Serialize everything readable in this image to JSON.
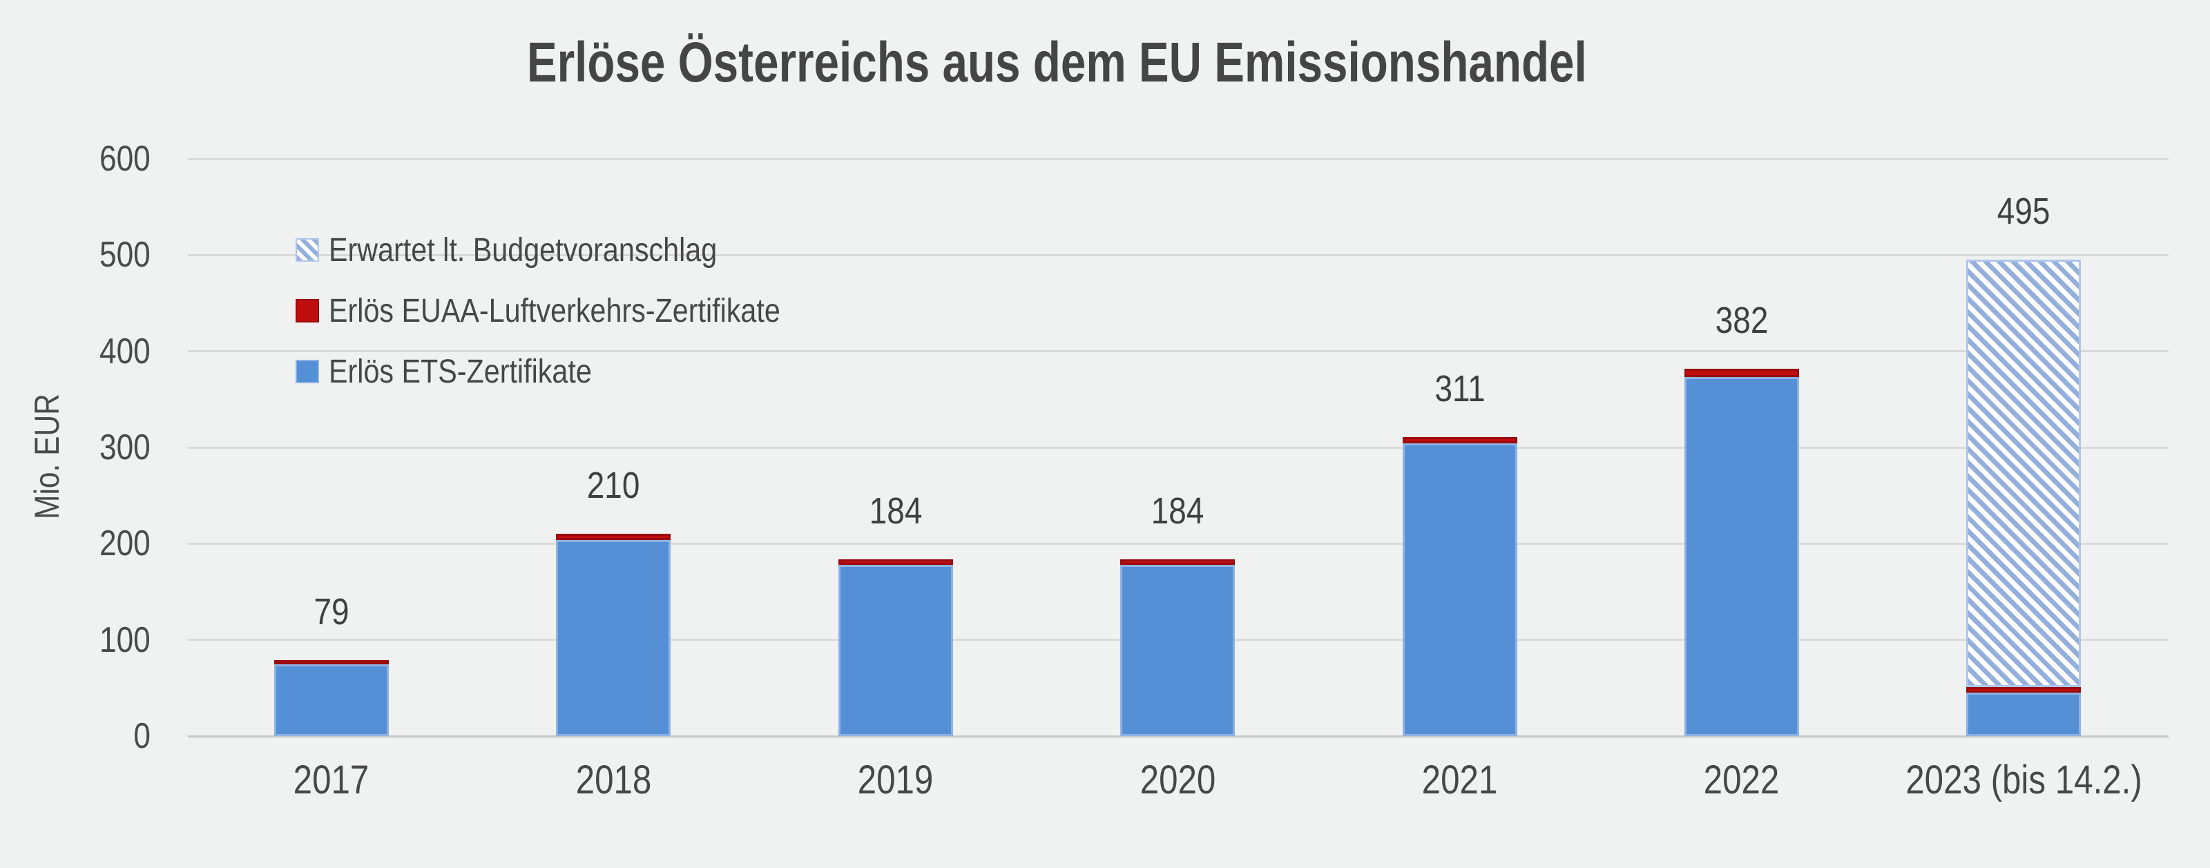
{
  "chart_data": {
    "type": "bar",
    "stacked": true,
    "title": "Erlöse Österreichs aus dem EU Emissionshandel",
    "ylabel": "Mio. EUR",
    "xlabel": "",
    "ylim": [
      0,
      600
    ],
    "ytick_step": 100,
    "grid": true,
    "legend_position": "upper-left-inside",
    "categories": [
      "2017",
      "2018",
      "2019",
      "2020",
      "2021",
      "2022",
      "2023 (bis 14.2.)"
    ],
    "totals": [
      79,
      210,
      184,
      184,
      311,
      382,
      495
    ],
    "series": [
      {
        "name": "Erlös ETS-Zertifikate",
        "style": "solid-blue",
        "color": "#5590d7",
        "values": [
          75,
          204,
          178,
          178,
          304,
          373,
          45
        ]
      },
      {
        "name": "Erlös EUAA-Luftverkehrs-Zertifikate",
        "style": "solid-red",
        "color": "#c00d10",
        "values": [
          4,
          6,
          6,
          6,
          7,
          9,
          6
        ]
      },
      {
        "name": "Erwartet lt. Budgetvoranschlag",
        "style": "hatched-blue",
        "color": "#94afdb",
        "values": [
          0,
          0,
          0,
          0,
          0,
          0,
          444
        ]
      }
    ],
    "legend": [
      {
        "label": "Erwartet lt. Budgetvoranschlag",
        "swatch": "hatch"
      },
      {
        "label": "Erlös EUAA-Luftverkehrs-Zertifikate",
        "swatch": "red"
      },
      {
        "label": "Erlös ETS-Zertifikate",
        "swatch": "blue"
      }
    ],
    "colors": {
      "blue": "#5590d7",
      "blue_border": "#8fb2e3",
      "red": "#c00d10",
      "red_border": "#9a0b0d",
      "hatch_stripe": "#94afdb",
      "hatch_border": "#aec6ea",
      "background": "#f0f1f1",
      "gridline": "#d9d9d9",
      "text": "#474747"
    }
  }
}
